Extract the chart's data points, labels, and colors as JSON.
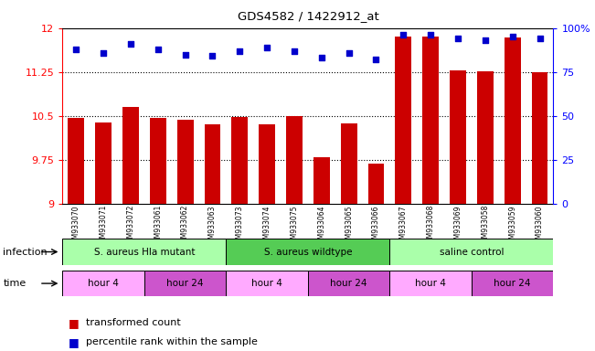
{
  "title": "GDS4582 / 1422912_at",
  "samples": [
    "GSM933070",
    "GSM933071",
    "GSM933072",
    "GSM933061",
    "GSM933062",
    "GSM933063",
    "GSM933073",
    "GSM933074",
    "GSM933075",
    "GSM933064",
    "GSM933065",
    "GSM933066",
    "GSM933067",
    "GSM933068",
    "GSM933069",
    "GSM933058",
    "GSM933059",
    "GSM933060"
  ],
  "bar_values": [
    10.47,
    10.38,
    10.65,
    10.47,
    10.43,
    10.35,
    10.48,
    10.36,
    10.49,
    9.79,
    10.37,
    9.68,
    11.85,
    11.85,
    11.28,
    11.26,
    11.84,
    11.25
  ],
  "percentile_values": [
    88,
    86,
    91,
    88,
    85,
    84,
    87,
    89,
    87,
    83,
    86,
    82,
    96,
    96,
    94,
    93,
    95,
    94
  ],
  "ylim_left": [
    9,
    12
  ],
  "ylim_right": [
    0,
    100
  ],
  "yticks_left": [
    9,
    9.75,
    10.5,
    11.25,
    12
  ],
  "yticks_right": [
    0,
    25,
    50,
    75,
    100
  ],
  "bar_color": "#cc0000",
  "dot_color": "#0000cc",
  "background_color": "#ffffff",
  "plot_bg_color": "#ffffff",
  "grid_color": "#000000",
  "infection_groups": [
    {
      "label": "S. aureus Hla mutant",
      "start": 0,
      "end": 6,
      "color": "#aaffaa"
    },
    {
      "label": "S. aureus wildtype",
      "start": 6,
      "end": 12,
      "color": "#55cc55"
    },
    {
      "label": "saline control",
      "start": 12,
      "end": 18,
      "color": "#aaffaa"
    }
  ],
  "time_groups": [
    {
      "label": "hour 4",
      "start": 0,
      "end": 3,
      "color": "#ffaaff"
    },
    {
      "label": "hour 24",
      "start": 3,
      "end": 6,
      "color": "#cc55cc"
    },
    {
      "label": "hour 4",
      "start": 6,
      "end": 9,
      "color": "#ffaaff"
    },
    {
      "label": "hour 24",
      "start": 9,
      "end": 12,
      "color": "#cc55cc"
    },
    {
      "label": "hour 4",
      "start": 12,
      "end": 15,
      "color": "#ffaaff"
    },
    {
      "label": "hour 24",
      "start": 15,
      "end": 18,
      "color": "#cc55cc"
    }
  ],
  "infection_label": "infection",
  "time_label": "time",
  "legend_items": [
    {
      "color": "#cc0000",
      "label": "transformed count"
    },
    {
      "color": "#0000cc",
      "label": "percentile rank within the sample"
    }
  ]
}
